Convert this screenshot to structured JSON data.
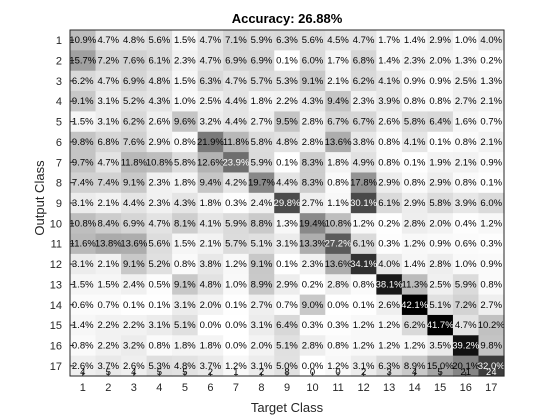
{
  "chart_data": {
    "type": "heatmap",
    "title": "Accuracy: 26.88%",
    "xlabel": "Target Class",
    "ylabel": "Output Class",
    "x_categories": [
      "1",
      "2",
      "3",
      "4",
      "5",
      "6",
      "7",
      "8",
      "9",
      "10",
      "11",
      "12",
      "13",
      "14",
      "15",
      "16",
      "17"
    ],
    "y_categories": [
      "1",
      "2",
      "3",
      "4",
      "5",
      "6",
      "7",
      "8",
      "9",
      "10",
      "11",
      "12",
      "13",
      "14",
      "15",
      "16",
      "17"
    ],
    "colormap": "gray",
    "grid": false,
    "target_counts": [
      4,
      5,
      4,
      5,
      5,
      2,
      1,
      2,
      8,
      0,
      0,
      2,
      3,
      4,
      5,
      21,
      24
    ],
    "cells": [
      [
        10.9,
        4.7,
        4.8,
        5.6,
        1.5,
        4.7,
        7.1,
        5.9,
        6.3,
        5.6,
        4.5,
        4.7,
        1.7,
        1.4,
        2.9,
        1.0,
        4.0
      ],
      [
        15.7,
        7.2,
        7.6,
        6.1,
        2.3,
        4.7,
        6.9,
        6.9,
        0.1,
        6.0,
        1.7,
        6.8,
        1.4,
        2.3,
        2.0,
        1.3,
        0.2
      ],
      [
        6.2,
        4.7,
        6.9,
        4.8,
        1.5,
        6.3,
        4.7,
        5.7,
        5.3,
        9.1,
        2.1,
        6.2,
        4.1,
        0.9,
        0.9,
        2.5,
        1.3
      ],
      [
        9.1,
        3.1,
        5.2,
        4.3,
        1.0,
        2.5,
        4.4,
        1.8,
        2.2,
        4.3,
        9.4,
        2.3,
        3.9,
        0.8,
        0.8,
        2.7,
        2.1
      ],
      [
        1.5,
        3.1,
        6.2,
        2.6,
        9.6,
        3.2,
        4.4,
        2.7,
        9.5,
        2.8,
        6.7,
        6.7,
        2.6,
        5.8,
        6.4,
        1.6,
        0.7
      ],
      [
        9.8,
        6.8,
        7.6,
        2.9,
        0.8,
        21.9,
        11.8,
        5.8,
        4.8,
        2.8,
        13.6,
        3.8,
        0.8,
        4.1,
        0.1,
        0.8,
        2.1
      ],
      [
        9.7,
        4.7,
        11.8,
        10.8,
        5.8,
        12.6,
        23.9,
        5.9,
        0.1,
        8.3,
        1.8,
        4.9,
        0.8,
        0.1,
        1.9,
        2.1,
        0.9
      ],
      [
        7.4,
        7.4,
        9.1,
        2.3,
        1.8,
        9.4,
        4.2,
        19.7,
        4.4,
        8.3,
        0.8,
        17.8,
        2.9,
        0.8,
        2.9,
        0.8,
        0.1
      ],
      [
        3.1,
        2.1,
        4.4,
        2.3,
        4.3,
        1.8,
        0.3,
        2.4,
        29.8,
        2.7,
        1.1,
        30.1,
        6.1,
        2.9,
        5.8,
        3.9,
        6.0
      ],
      [
        10.8,
        8.4,
        6.9,
        4.7,
        8.1,
        4.1,
        5.9,
        8.8,
        1.3,
        19.4,
        10.8,
        1.2,
        0.2,
        2.8,
        2.0,
        0.4,
        1.2
      ],
      [
        11.6,
        13.8,
        13.6,
        5.6,
        1.5,
        2.1,
        5.7,
        5.1,
        3.1,
        13.3,
        27.2,
        6.1,
        0.3,
        1.2,
        0.9,
        0.6,
        0.3
      ],
      [
        3.1,
        2.1,
        9.1,
        5.2,
        0.8,
        3.8,
        1.2,
        9.1,
        0.1,
        2.3,
        13.6,
        34.1,
        4.0,
        1.4,
        2.8,
        1.0,
        0.9
      ],
      [
        1.5,
        1.5,
        2.4,
        0.5,
        9.1,
        4.8,
        1.0,
        8.9,
        2.9,
        0.2,
        2.8,
        0.8,
        38.1,
        11.3,
        2.5,
        5.9,
        0.8
      ],
      [
        0.6,
        0.7,
        0.1,
        0.1,
        3.1,
        2.0,
        0.1,
        2.7,
        0.7,
        9.0,
        0.0,
        0.1,
        2.6,
        42.1,
        5.1,
        7.2,
        2.7
      ],
      [
        1.4,
        2.2,
        2.2,
        3.1,
        5.1,
        0.0,
        0.0,
        3.1,
        6.4,
        0.3,
        0.3,
        1.2,
        1.2,
        6.2,
        41.7,
        4.7,
        10.2
      ],
      [
        0.8,
        2.2,
        3.2,
        0.8,
        1.8,
        1.8,
        0.0,
        2.0,
        5.1,
        2.8,
        0.8,
        1.2,
        1.2,
        1.2,
        3.5,
        39.2,
        9.8
      ],
      [
        2.6,
        3.7,
        2.6,
        5.3,
        4.8,
        3.7,
        1.2,
        3.1,
        5.0,
        0.0,
        1.2,
        3.1,
        6.3,
        8.9,
        15.0,
        20.1,
        32.0
      ]
    ]
  }
}
